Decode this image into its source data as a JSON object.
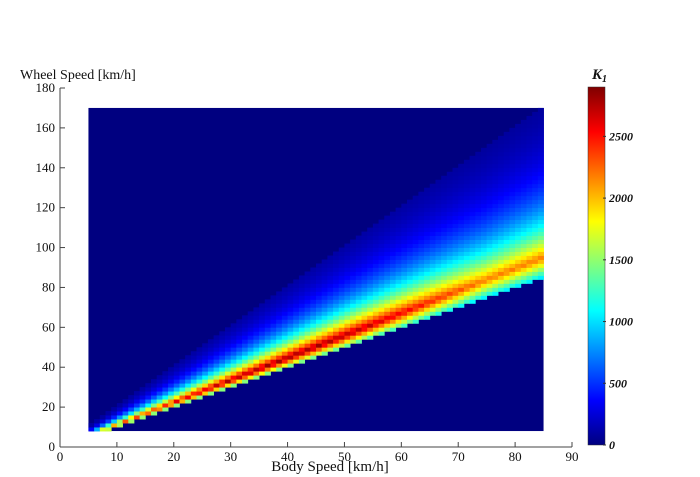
{
  "chart_data": {
    "type": "heatmap",
    "title": "",
    "xlabel": "Body Speed [km/h]",
    "ylabel": "Wheel Speed [km/h]",
    "xlim": [
      0,
      90
    ],
    "ylim": [
      0,
      180
    ],
    "x_ticks": [
      0,
      10,
      20,
      30,
      40,
      50,
      60,
      70,
      80,
      90
    ],
    "y_ticks": [
      0,
      20,
      40,
      60,
      80,
      100,
      120,
      140,
      160,
      180
    ],
    "x_range": [
      5,
      85
    ],
    "y_range": [
      8,
      170
    ],
    "grid": false,
    "colorbar": {
      "label": "K",
      "label_subscript": "1",
      "min": 0,
      "max": 2900,
      "ticks": [
        0,
        500,
        1000,
        1500,
        2000,
        2500
      ],
      "tick_labels": [
        "0",
        "500",
        "1000",
        "1500",
        "2000",
        "2500"
      ],
      "colormap": "jet"
    },
    "band": {
      "lower_slope": 1.0,
      "upper_slope": 2.0,
      "peak_slope": 1.12,
      "peak_value_range": [
        2200,
        2850
      ],
      "description_points": [
        {
          "body_speed": 10,
          "wheel_speed": 12,
          "value": 2100
        },
        {
          "body_speed": 30,
          "wheel_speed": 36,
          "value": 2600
        },
        {
          "body_speed": 55,
          "wheel_speed": 63,
          "value": 2800
        },
        {
          "body_speed": 80,
          "wheel_speed": 92,
          "value": 2400
        }
      ]
    }
  }
}
